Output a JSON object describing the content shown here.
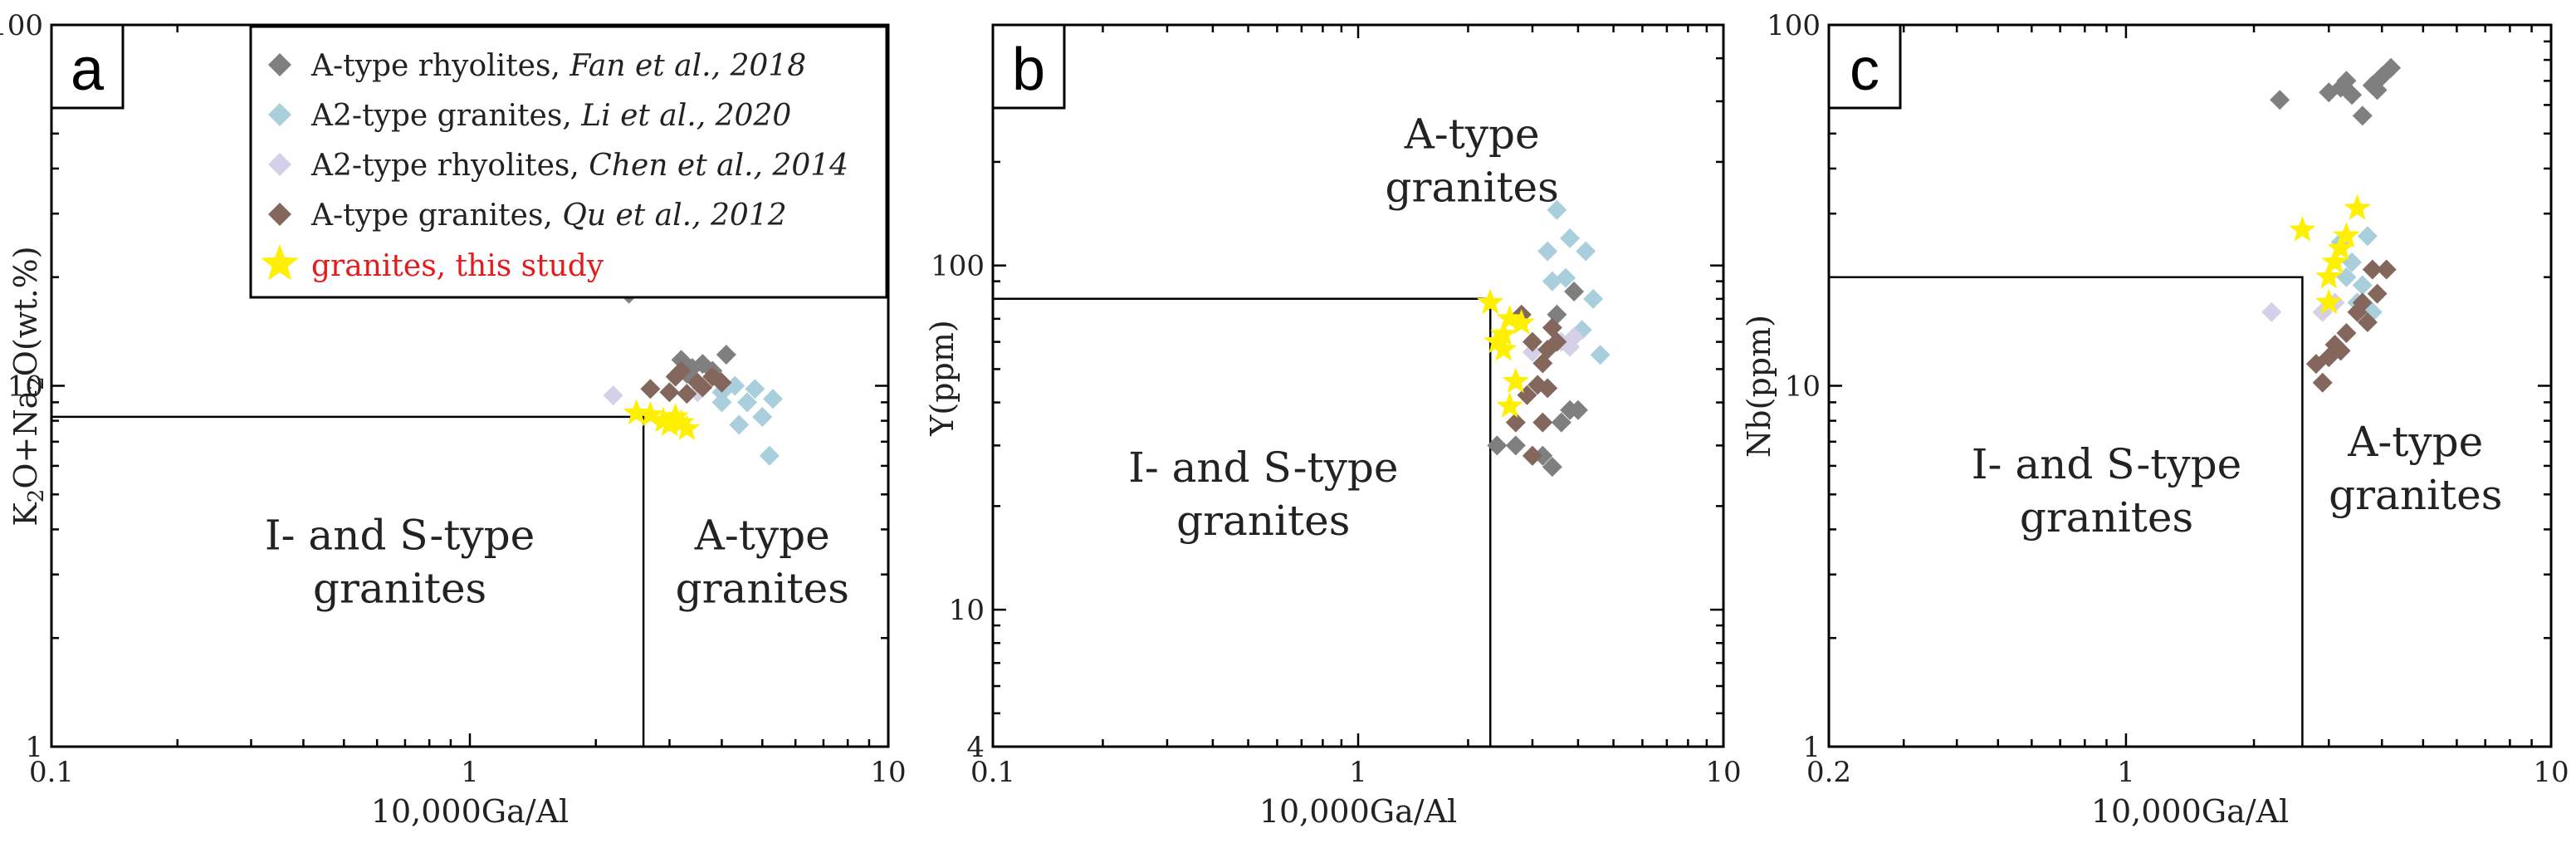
{
  "colors": {
    "A-type rhyolites": "#7f7f7f",
    "A2-type granites": "#a9cfdc",
    "A2-type rhyolites": "#d6cfe8",
    "A-type granites": "#84675c",
    "granites, this study": "#ffef00",
    "legend_red_text": "#e41a1c"
  },
  "legend": [
    {
      "group": "A-type rhyolites",
      "label": "A-type rhyolites, ",
      "citation": "Fan et al., 2018",
      "marker": "diamond"
    },
    {
      "group": "A2-type granites",
      "label": "A2-type granites, ",
      "citation": "Li et al., 2020",
      "marker": "diamond"
    },
    {
      "group": "A2-type rhyolites",
      "label": "A2-type rhyolites, ",
      "citation": "Chen et al., 2014",
      "marker": "diamond"
    },
    {
      "group": "A-type granites",
      "label": "A-type granites, ",
      "citation": "Qu et al., 2012",
      "marker": "diamond"
    },
    {
      "group": "granites, this study",
      "label": "granites, this study",
      "citation": "",
      "marker": "star"
    }
  ],
  "chart_data": [
    {
      "panel": "a",
      "type": "scatter",
      "xscale": "log",
      "yscale": "log",
      "xlim": [
        0.1,
        10
      ],
      "ylim": [
        1,
        100
      ],
      "xticks": [
        {
          "v": 0.1,
          "label": "0.1"
        },
        {
          "v": 1,
          "label": "1"
        },
        {
          "v": 10,
          "label": "10"
        }
      ],
      "yticks": [
        {
          "v": 1,
          "label": "1"
        },
        {
          "v": 10,
          "label": "10"
        },
        {
          "v": 100,
          "label": "100"
        }
      ],
      "xlabel": "10,000Ga/Al",
      "ylabel_parts": [
        "K",
        "2",
        "O+Na",
        "2",
        "O(wt.%)"
      ],
      "boundary": [
        [
          0.1,
          8.2
        ],
        [
          2.6,
          8.2
        ],
        [
          2.6,
          1
        ]
      ],
      "fields": [
        {
          "lines": [
            "I- and S-type",
            "granites"
          ],
          "x": 0.68,
          "y": 3.3
        },
        {
          "lines": [
            "A-type",
            "granites"
          ],
          "x": 5.0,
          "y": 3.3
        }
      ],
      "series": [
        {
          "name": "A-type rhyolites",
          "points": [
            [
              2.4,
              18
            ],
            [
              3.2,
              11.8
            ],
            [
              3.4,
              11.2
            ],
            [
              3.6,
              11.5
            ],
            [
              3.9,
              10.5
            ],
            [
              4.1,
              12.2
            ],
            [
              3.3,
              10.8
            ],
            [
              3.8,
              11
            ]
          ]
        },
        {
          "name": "A2-type granites",
          "points": [
            [
              4.0,
              9.0
            ],
            [
              4.3,
              10.0
            ],
            [
              4.6,
              9.0
            ],
            [
              4.8,
              9.8
            ],
            [
              5.0,
              8.2
            ],
            [
              5.3,
              9.2
            ],
            [
              5.2,
              6.4
            ],
            [
              4.4,
              7.8
            ],
            [
              4.0,
              9.6
            ]
          ]
        },
        {
          "name": "A2-type rhyolites",
          "points": [
            [
              2.2,
              9.4
            ],
            [
              3.5,
              9.6
            ]
          ]
        },
        {
          "name": "A-type granites",
          "points": [
            [
              2.7,
              9.8
            ],
            [
              3.0,
              9.6
            ],
            [
              3.1,
              10.6
            ],
            [
              3.3,
              9.5
            ],
            [
              3.5,
              10.2
            ],
            [
              3.6,
              9.9
            ],
            [
              3.8,
              10.6
            ],
            [
              4.0,
              10.2
            ],
            [
              3.2,
              11.0
            ]
          ]
        },
        {
          "name": "granites, this study",
          "points": [
            [
              2.5,
              8.4
            ],
            [
              2.9,
              8.0
            ],
            [
              3.0,
              7.8
            ],
            [
              3.1,
              8.2
            ],
            [
              3.3,
              7.6
            ],
            [
              2.7,
              8.3
            ],
            [
              3.2,
              7.9
            ]
          ]
        }
      ]
    },
    {
      "panel": "b",
      "type": "scatter",
      "xscale": "log",
      "yscale": "log",
      "xlim": [
        0.1,
        10
      ],
      "ylim": [
        4,
        500
      ],
      "xticks": [
        {
          "v": 0.1,
          "label": "0.1"
        },
        {
          "v": 1,
          "label": "1"
        },
        {
          "v": 10,
          "label": "10"
        }
      ],
      "yticks": [
        {
          "v": 4,
          "label": "4"
        },
        {
          "v": 10,
          "label": "10"
        },
        {
          "v": 100,
          "label": "100"
        }
      ],
      "xlabel": "10,000Ga/Al",
      "ylabel": "Y(ppm)",
      "boundary": [
        [
          0.1,
          80
        ],
        [
          2.3,
          80
        ],
        [
          2.3,
          4
        ]
      ],
      "fields": [
        {
          "lines": [
            "I- and S-type",
            "granites"
          ],
          "x": 0.55,
          "y": 22
        },
        {
          "lines": [
            "A-type",
            "granites"
          ],
          "x": 2.05,
          "y": 205
        }
      ],
      "series": [
        {
          "name": "A-type rhyolites",
          "points": [
            [
              2.4,
              30
            ],
            [
              2.7,
              30
            ],
            [
              3.0,
              28
            ],
            [
              3.2,
              28
            ],
            [
              3.4,
              26
            ],
            [
              3.6,
              35
            ],
            [
              3.8,
              38
            ],
            [
              4.0,
              38
            ],
            [
              3.9,
              84
            ],
            [
              3.5,
              72
            ]
          ]
        },
        {
          "name": "A2-type granites",
          "points": [
            [
              3.5,
              145
            ],
            [
              3.8,
              120
            ],
            [
              4.2,
              110
            ],
            [
              3.3,
              110
            ],
            [
              3.7,
              92
            ],
            [
              3.4,
              90
            ],
            [
              4.4,
              80
            ],
            [
              4.6,
              55
            ],
            [
              4.1,
              65
            ]
          ]
        },
        {
          "name": "A2-type rhyolites",
          "points": [
            [
              3.6,
              60
            ],
            [
              3.9,
              62
            ],
            [
              3.0,
              56
            ],
            [
              3.8,
              58
            ]
          ]
        },
        {
          "name": "A-type granites",
          "points": [
            [
              2.8,
              72
            ],
            [
              3.0,
              60
            ],
            [
              3.2,
              52
            ],
            [
              3.4,
              66
            ],
            [
              3.3,
              57
            ],
            [
              3.5,
              60
            ],
            [
              3.1,
              45
            ],
            [
              2.9,
              42
            ],
            [
              3.3,
              44
            ],
            [
              3.2,
              35
            ],
            [
              2.7,
              35
            ],
            [
              3.0,
              28
            ]
          ]
        },
        {
          "name": "granites, this study",
          "points": [
            [
              2.3,
              78
            ],
            [
              2.6,
              70
            ],
            [
              2.5,
              63
            ],
            [
              2.4,
              60
            ],
            [
              2.8,
              68
            ],
            [
              2.7,
              46
            ],
            [
              2.6,
              39
            ],
            [
              2.5,
              57
            ]
          ]
        }
      ]
    },
    {
      "panel": "c",
      "type": "scatter",
      "xscale": "log",
      "yscale": "log",
      "xlim": [
        0.2,
        10
      ],
      "ylim": [
        1,
        100
      ],
      "xticks": [
        {
          "v": 0.2,
          "label": "0.2"
        },
        {
          "v": 1,
          "label": "1"
        },
        {
          "v": 10,
          "label": "10"
        }
      ],
      "yticks": [
        {
          "v": 1,
          "label": "1"
        },
        {
          "v": 10,
          "label": "10"
        },
        {
          "v": 100,
          "label": "100"
        }
      ],
      "xlabel": "10,000Ga/Al",
      "ylabel": "Nb(ppm)",
      "boundary": [
        [
          0.2,
          20
        ],
        [
          2.6,
          20
        ],
        [
          2.6,
          1
        ]
      ],
      "fields": [
        {
          "lines": [
            "I- and S-type",
            "granites"
          ],
          "x": 0.9,
          "y": 5.2
        },
        {
          "lines": [
            "A-type",
            "granites"
          ],
          "x": 4.8,
          "y": 6.0
        }
      ],
      "series": [
        {
          "name": "A-type rhyolites",
          "points": [
            [
              2.3,
              62
            ],
            [
              3.0,
              65
            ],
            [
              3.2,
              67
            ],
            [
              3.4,
              64
            ],
            [
              3.6,
              56
            ],
            [
              3.8,
              68
            ],
            [
              4.0,
              72
            ],
            [
              4.2,
              76
            ],
            [
              3.3,
              70
            ],
            [
              3.9,
              66
            ]
          ]
        },
        {
          "name": "A2-type granites",
          "points": [
            [
              3.3,
              20
            ],
            [
              3.5,
              17
            ],
            [
              3.7,
              26
            ],
            [
              3.2,
              25
            ],
            [
              3.8,
              16
            ],
            [
              3.4,
              22
            ],
            [
              3.6,
              19
            ]
          ]
        },
        {
          "name": "A2-type rhyolites",
          "points": [
            [
              2.2,
              16
            ],
            [
              2.9,
              16
            ],
            [
              3.1,
              17
            ]
          ]
        },
        {
          "name": "A-type granites",
          "points": [
            [
              2.8,
              11.5
            ],
            [
              3.0,
              12
            ],
            [
              3.1,
              13
            ],
            [
              3.3,
              14
            ],
            [
              3.2,
              12.5
            ],
            [
              2.9,
              10.2
            ],
            [
              3.5,
              16
            ],
            [
              3.7,
              15
            ],
            [
              3.9,
              18
            ],
            [
              4.1,
              21
            ],
            [
              3.8,
              21
            ],
            [
              3.6,
              17
            ]
          ]
        },
        {
          "name": "granites, this study",
          "points": [
            [
              2.6,
              27
            ],
            [
              3.0,
              20
            ],
            [
              3.1,
              22
            ],
            [
              3.2,
              24
            ],
            [
              3.3,
              26
            ],
            [
              3.5,
              31
            ],
            [
              3.0,
              17
            ]
          ]
        }
      ]
    }
  ]
}
